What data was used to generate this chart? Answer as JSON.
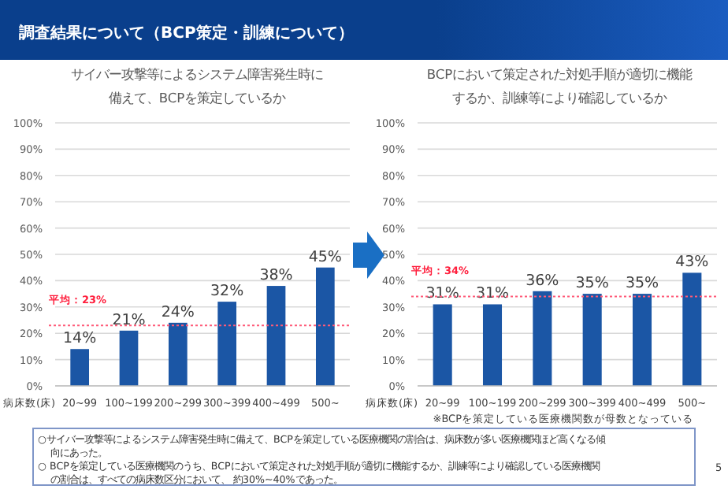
{
  "chart_data": [
    {
      "type": "bar",
      "title": "サイバー攻撃等によるシステム障害発生時に備えて、BCPを策定しているか",
      "xlabel": "病床数(床)",
      "categories": [
        "20~99",
        "100~199",
        "200~299",
        "300~399",
        "400~499",
        "500~"
      ],
      "values": [
        14,
        21,
        24,
        32,
        38,
        45
      ],
      "color": "#1b56a5",
      "ylim": [
        0,
        100
      ],
      "yticks": [
        {
          "value": 0,
          "label": "0%"
        },
        {
          "value": 10,
          "label": "10%"
        },
        {
          "value": 20,
          "label": "20%"
        },
        {
          "value": 30,
          "label": "30%"
        },
        {
          "value": 40,
          "label": "40%"
        },
        {
          "value": 50,
          "label": "50%"
        },
        {
          "value": 60,
          "label": "60%"
        },
        {
          "value": 70,
          "label": "70%"
        },
        {
          "value": 80,
          "label": "80%"
        },
        {
          "value": 90,
          "label": "90%"
        },
        {
          "value": 100,
          "label": "100%"
        }
      ],
      "grid": "y",
      "value_labels": [
        "14%",
        "21%",
        "24%",
        "32%",
        "38%",
        "45%"
      ],
      "ref_lines": [
        {
          "axis": "y",
          "value": 23,
          "label": "平均：23%",
          "color": "#ff5a78",
          "line_style": "dotted"
        }
      ],
      "annotations": [
        "調査結果について（BCP策定・訓練について）"
      ]
    },
    {
      "type": "bar",
      "title": "BCPにおいて策定された対処手順が適切に機能するか、訓練等により確認しているか",
      "xlabel": "病床数(床)",
      "categories": [
        "20~99",
        "100~199",
        "200~299",
        "300~399",
        "400~499",
        "500~"
      ],
      "values": [
        31,
        31,
        36,
        35,
        35,
        43
      ],
      "color": "#1b56a5",
      "ylim": [
        0,
        100
      ],
      "yticks": [
        {
          "value": 0,
          "label": "0%"
        },
        {
          "value": 10,
          "label": "10%"
        },
        {
          "value": 20,
          "label": "20%"
        },
        {
          "value": 30,
          "label": "30%"
        },
        {
          "value": 40,
          "label": "40%"
        },
        {
          "value": 50,
          "label": "50%"
        },
        {
          "value": 60,
          "label": "60%"
        },
        {
          "value": 70,
          "label": "70%"
        },
        {
          "value": 80,
          "label": "80%"
        },
        {
          "value": 90,
          "label": "90%"
        },
        {
          "value": 100,
          "label": "100%"
        }
      ],
      "grid": "y",
      "value_labels": [
        "31%",
        "31%",
        "36%",
        "35%",
        "35%",
        "43%"
      ],
      "ref_lines": [
        {
          "axis": "y",
          "value": 34,
          "label": "平均：34%",
          "color": "#ff5a78",
          "line_style": "dotted"
        }
      ],
      "annotations": [
        "※BCPを策定している医療機関数が母数となっている",
        "○サイバー攻撃等によるシステム障害発生時に備えて、BCPを策定している医療機関の割合は、病床数が多い医療機関ほど高くなる傾向にあった。",
        "○ BCPを策定している医療機関のうち、BCPにおいて策定された対処手順が適切に機能するか、訓練等により確認している医療機関の割合は、すべての病床数区分において、 約30%~40%であった。",
        "5"
      ]
    }
  ]
}
